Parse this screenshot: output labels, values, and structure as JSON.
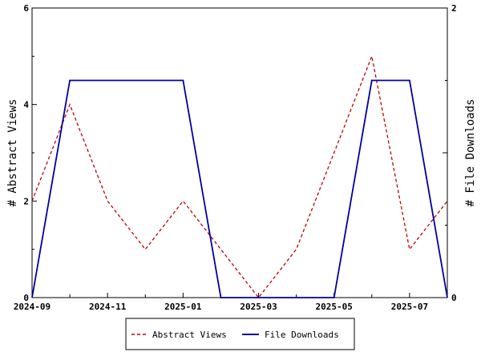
{
  "chart_data": {
    "type": "line",
    "x": [
      "2024-09",
      "2024-10",
      "2024-11",
      "2024-12",
      "2025-01",
      "2025-02",
      "2025-03",
      "2025-04",
      "2025-05",
      "2025-06",
      "2025-07",
      "2025-08"
    ],
    "x_tick_labels": [
      "2024-09",
      "2024-11",
      "2025-01",
      "2025-03",
      "2025-05",
      "2025-07"
    ],
    "series": [
      {
        "name": "Abstract Views",
        "axis": "left",
        "color": "#c00000",
        "dash": "dashed",
        "values": [
          2,
          4,
          2,
          1,
          2,
          1,
          0,
          1,
          3,
          5,
          1,
          2
        ]
      },
      {
        "name": "File Downloads",
        "axis": "right",
        "color": "#0000a0",
        "dash": "solid",
        "values": [
          0,
          1.5,
          1.5,
          1.5,
          1.5,
          0,
          0,
          0,
          0,
          1.5,
          1.5,
          0
        ]
      }
    ],
    "ylabel_left": "# Abstract Views",
    "ylabel_right": "# File Downloads",
    "ylim_left": [
      0,
      6
    ],
    "ylim_right": [
      0,
      2
    ],
    "yticks_left": [
      "0",
      "2",
      "4",
      "6"
    ],
    "yticks_right": [
      "0",
      "2"
    ],
    "grid": false,
    "legend_position": "bottom-center"
  }
}
